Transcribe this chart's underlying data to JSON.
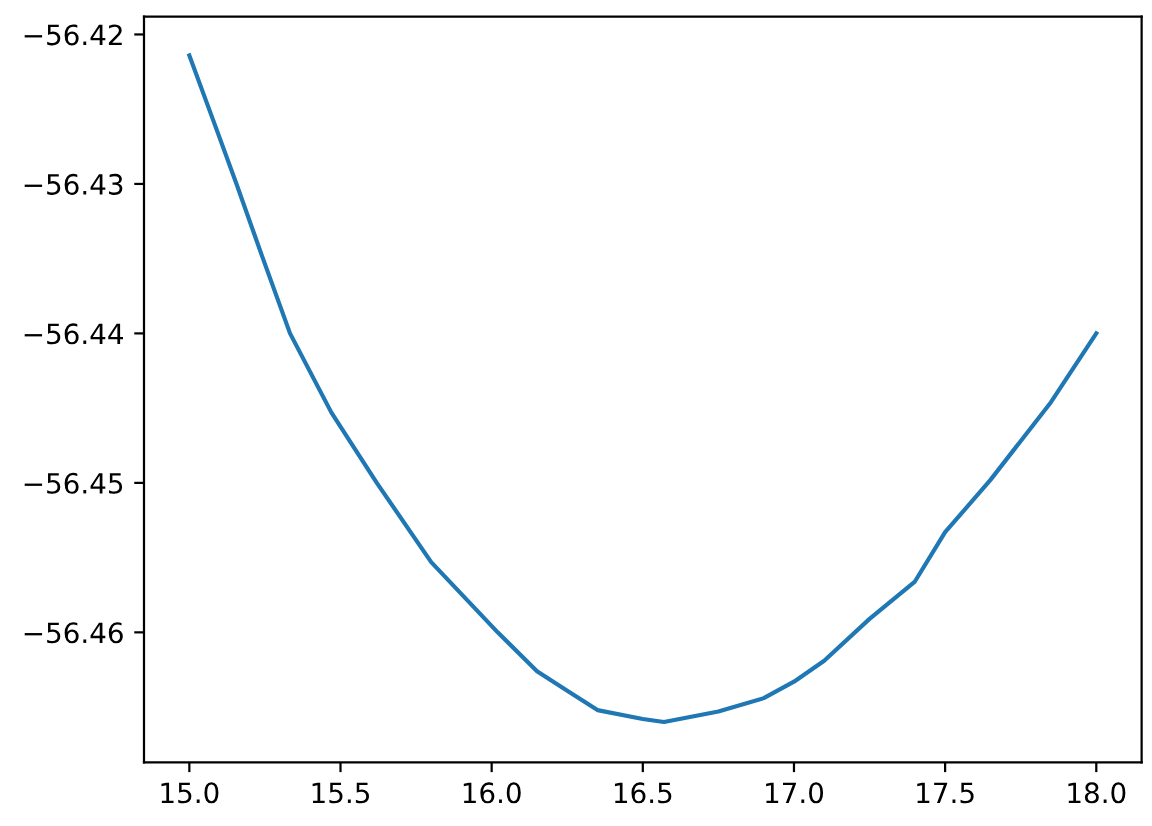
{
  "chart_data": {
    "type": "line",
    "series": [
      {
        "color": "#1f77b4",
        "x": [
          15.0,
          15.08,
          15.156,
          15.24,
          15.333,
          15.47,
          15.62,
          15.8,
          16.02,
          16.15,
          16.25,
          16.35,
          16.5,
          16.57,
          16.75,
          16.9,
          17.0,
          17.1,
          17.25,
          17.4,
          17.5,
          17.65,
          17.85,
          18.0
        ],
        "values": [
          -56.4214,
          -56.4258,
          -56.43,
          -56.4348,
          -56.44,
          -56.4453,
          -56.45,
          -56.4553,
          -56.46,
          -56.4626,
          -56.4639,
          -56.4652,
          -56.4658,
          -56.466,
          -56.4653,
          -56.4644,
          -56.4633,
          -56.4619,
          -56.4591,
          -56.4566,
          -56.4533,
          -56.4498,
          -56.4446,
          -56.44
        ]
      }
    ],
    "xlim": [
      14.85,
      18.15
    ],
    "ylim": [
      -56.4687,
      -56.4188
    ],
    "xticks": [
      {
        "value": 15,
        "label": "15.0"
      },
      15.5,
      {
        "value": 16,
        "label": "16.0"
      },
      16.5,
      {
        "value": 17,
        "label": "17.0"
      },
      17.5,
      {
        "value": 18,
        "label": "18.0"
      }
    ],
    "yticks": [
      {
        "value": -56.46,
        "label": "−56.46"
      },
      {
        "value": -56.45,
        "label": "−56.45"
      },
      {
        "value": -56.44,
        "label": "−56.44"
      },
      {
        "value": -56.43,
        "label": "−56.43"
      },
      {
        "value": -56.42,
        "label": "−56.42"
      }
    ],
    "grid": false,
    "legend": false,
    "marker": "none",
    "line_style": "solid"
  }
}
